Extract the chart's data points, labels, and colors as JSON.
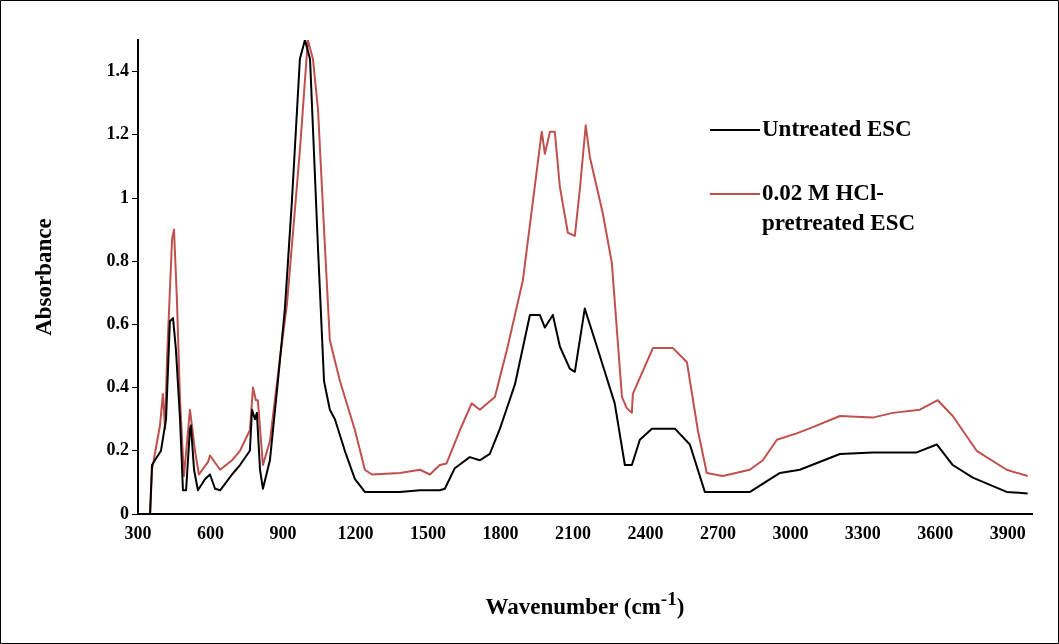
{
  "chart_data": {
    "type": "line",
    "xlabel": "Wavenumber (cm$^{-1}$)",
    "ylabel": "Absorbance",
    "xlim": [
      300,
      4000
    ],
    "xticks": [
      300,
      600,
      900,
      1200,
      1500,
      1800,
      2100,
      2400,
      2700,
      3000,
      3300,
      3600,
      3900
    ],
    "ylim": [
      0,
      1.5
    ],
    "yticks": [
      0,
      0.2,
      0.4,
      0.6,
      0.8,
      1,
      1.2,
      1.4
    ],
    "grid": false,
    "legend": "top right",
    "marker": "none",
    "line_style": "solid",
    "series": [
      {
        "name": "Untreated ESC",
        "color": "#000000",
        "x": [
          350,
          358,
          370,
          395,
          416,
          432,
          445,
          457,
          474,
          486,
          499,
          515,
          519,
          532,
          548,
          577,
          598,
          619,
          640,
          689,
          722,
          763,
          772,
          784,
          792,
          805,
          817,
          846,
          879,
          908,
          937,
          970,
          991,
          1012,
          1045,
          1070,
          1094,
          1115,
          1156,
          1198,
          1239,
          1384,
          1467,
          1549,
          1570,
          1611,
          1673,
          1715,
          1756,
          1798,
          1860,
          1922,
          1963,
          1984,
          2017,
          2046,
          2087,
          2108,
          2149,
          2191,
          2232,
          2273,
          2315,
          2344,
          2377,
          2427,
          2522,
          2584,
          2646,
          2708,
          2833,
          2957,
          3039,
          3205,
          3341,
          3523,
          3606,
          3672,
          3755,
          3895,
          3982
        ],
        "values": [
          0,
          0.155,
          0.17,
          0.2,
          0.3,
          0.61,
          0.62,
          0.52,
          0.3,
          0.075,
          0.075,
          0.27,
          0.28,
          0.14,
          0.075,
          0.11,
          0.125,
          0.08,
          0.075,
          0.125,
          0.155,
          0.2,
          0.33,
          0.3,
          0.32,
          0.14,
          0.08,
          0.17,
          0.42,
          0.65,
          0.99,
          1.44,
          1.5,
          1.44,
          0.84,
          0.42,
          0.33,
          0.3,
          0.2,
          0.11,
          0.07,
          0.07,
          0.075,
          0.075,
          0.08,
          0.145,
          0.18,
          0.17,
          0.19,
          0.27,
          0.41,
          0.63,
          0.63,
          0.59,
          0.63,
          0.53,
          0.46,
          0.45,
          0.65,
          0.55,
          0.45,
          0.35,
          0.155,
          0.155,
          0.235,
          0.27,
          0.27,
          0.22,
          0.07,
          0.07,
          0.07,
          0.13,
          0.14,
          0.19,
          0.195,
          0.195,
          0.22,
          0.155,
          0.115,
          0.07,
          0.065
        ]
      },
      {
        "name": "0.02 M HCl-pretreated ESC",
        "color": "#c0504d",
        "x": [
          350,
          358,
          391,
          403,
          412,
          420,
          441,
          449,
          461,
          474,
          490,
          515,
          536,
          552,
          590,
          598,
          640,
          689,
          722,
          763,
          776,
          788,
          796,
          817,
          846,
          887,
          916,
          970,
          1003,
          1024,
          1045,
          1074,
          1094,
          1136,
          1198,
          1239,
          1268,
          1384,
          1467,
          1508,
          1549,
          1577,
          1632,
          1681,
          1715,
          1777,
          1827,
          1893,
          1951,
          1971,
          1984,
          2005,
          2025,
          2046,
          2079,
          2108,
          2129,
          2153,
          2170,
          2224,
          2261,
          2303,
          2323,
          2344,
          2348,
          2431,
          2514,
          2572,
          2617,
          2654,
          2720,
          2832,
          2886,
          2944,
          3026,
          3093,
          3205,
          3341,
          3424,
          3536,
          3610,
          3672,
          3771,
          3895,
          3982
        ],
        "values": [
          0,
          0.14,
          0.28,
          0.38,
          0.27,
          0.49,
          0.87,
          0.9,
          0.68,
          0.36,
          0.12,
          0.33,
          0.2,
          0.125,
          0.165,
          0.185,
          0.14,
          0.17,
          0.2,
          0.265,
          0.4,
          0.36,
          0.36,
          0.155,
          0.23,
          0.49,
          0.66,
          1.15,
          1.5,
          1.44,
          1.28,
          0.84,
          0.55,
          0.42,
          0.265,
          0.14,
          0.125,
          0.13,
          0.14,
          0.125,
          0.155,
          0.16,
          0.265,
          0.35,
          0.33,
          0.37,
          0.52,
          0.74,
          1.09,
          1.21,
          1.14,
          1.21,
          1.21,
          1.035,
          0.89,
          0.88,
          1.03,
          1.23,
          1.13,
          0.95,
          0.795,
          0.37,
          0.335,
          0.32,
          0.38,
          0.525,
          0.525,
          0.48,
          0.265,
          0.13,
          0.12,
          0.14,
          0.17,
          0.235,
          0.255,
          0.275,
          0.31,
          0.305,
          0.32,
          0.33,
          0.36,
          0.31,
          0.2,
          0.14,
          0.12
        ]
      }
    ]
  }
}
